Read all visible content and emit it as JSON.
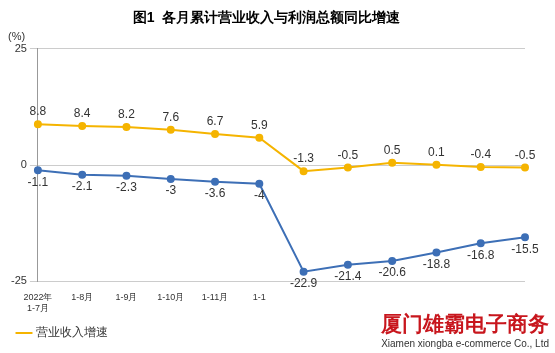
{
  "chart_data": {
    "type": "line",
    "title": "图1  各月累计营业收入与利润总额同比增速",
    "y_label": "(%)",
    "categories": [
      "2022年\n1-7月",
      "1-8月",
      "1-9月",
      "1-10月",
      "1-11月",
      "1-1",
      null,
      null,
      null,
      null,
      null,
      null
    ],
    "series": [
      {
        "name": "营业收入增速",
        "color": "#f5b400",
        "marker": "circle",
        "line_style": "solid",
        "values": [
          8.8,
          8.4,
          8.2,
          7.6,
          6.7,
          5.9,
          -1.3,
          -0.5,
          0.5,
          0.1,
          -0.4,
          -0.5
        ]
      },
      {
        "color": "#3d6fb6",
        "marker": "circle",
        "line_style": "solid",
        "values": [
          -1.1,
          -2.1,
          -2.3,
          -3.0,
          -3.6,
          -4.0,
          -22.9,
          -21.4,
          -20.6,
          -18.8,
          -16.8,
          -15.5
        ]
      }
    ],
    "ylim": [
      -25,
      25
    ],
    "yticks": [
      -25,
      0,
      25
    ],
    "grid": true,
    "legend": "bottom-left",
    "data_labels": true,
    "annotations": [
      "厦门雄霸电子商务",
      "Xiamen xiongba e-commerce Co., Ltd"
    ]
  }
}
